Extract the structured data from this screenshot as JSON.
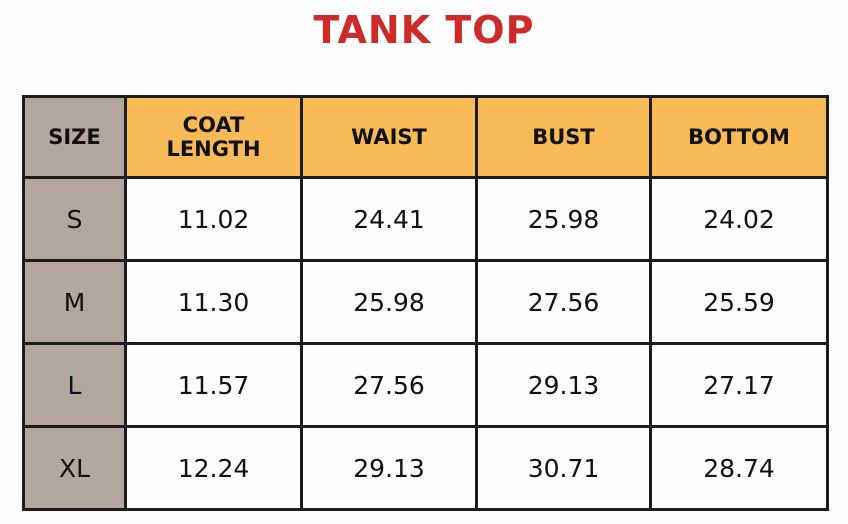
{
  "title": "TANK TOP",
  "table": {
    "header": [
      "SIZE",
      "COAT LENGTH",
      "WAIST",
      "BUST",
      "BOTTOM"
    ],
    "rows": [
      [
        "S",
        "11.02",
        "24.41",
        "25.98",
        "24.02"
      ],
      [
        "M",
        "11.30",
        "25.98",
        "27.56",
        "25.59"
      ],
      [
        "L",
        "11.57",
        "27.56",
        "29.13",
        "27.17"
      ],
      [
        "XL",
        "12.24",
        "29.13",
        "30.71",
        "28.74"
      ]
    ]
  }
}
